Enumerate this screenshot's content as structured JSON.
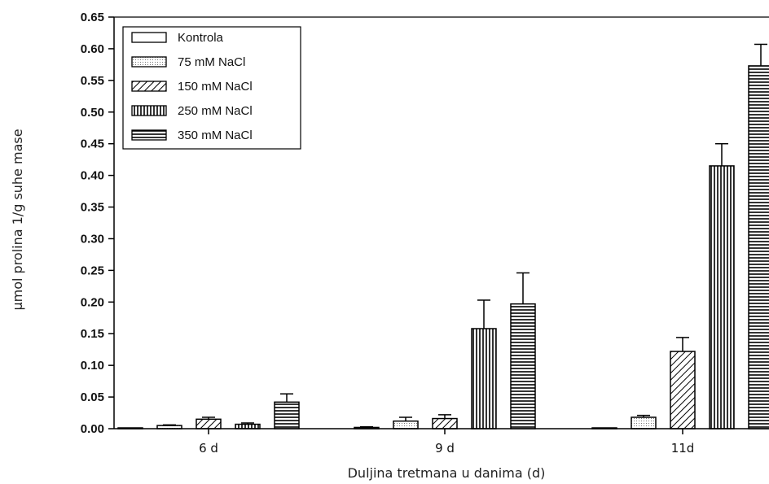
{
  "chart_data": {
    "type": "bar",
    "title": "",
    "xlabel": "Duljina tretmana u danima (d)",
    "ylabel": "µmol prolina 1/g suhe mase",
    "categories": [
      "6 d",
      "9 d",
      "11d"
    ],
    "ylim": [
      0,
      0.65
    ],
    "yticks": [
      "0.00",
      "0.05",
      "0.10",
      "0.15",
      "0.20",
      "0.25",
      "0.30",
      "0.35",
      "0.40",
      "0.45",
      "0.50",
      "0.55",
      "0.60",
      "0.65"
    ],
    "legend_position": "top-left",
    "grid": false,
    "series": [
      {
        "name": "Kontrola",
        "pattern": "blank",
        "values": [
          0.001,
          0.002,
          0.001
        ],
        "errors": [
          0.0,
          0.001,
          0.0
        ]
      },
      {
        "name": "75 mM NaCl",
        "pattern": "dots",
        "values": [
          0.005,
          0.012,
          0.018
        ],
        "errors": [
          0.001,
          0.006,
          0.003
        ]
      },
      {
        "name": "150 mM NaCl",
        "pattern": "diagonal",
        "values": [
          0.015,
          0.016,
          0.122
        ],
        "errors": [
          0.003,
          0.006,
          0.022
        ]
      },
      {
        "name": "250 mM NaCl",
        "pattern": "vertical",
        "values": [
          0.007,
          0.158,
          0.415
        ],
        "errors": [
          0.002,
          0.045,
          0.035
        ]
      },
      {
        "name": "350 mM NaCl",
        "pattern": "horizontal",
        "values": [
          0.042,
          0.197,
          0.573
        ],
        "errors": [
          0.013,
          0.049,
          0.034
        ]
      }
    ]
  }
}
